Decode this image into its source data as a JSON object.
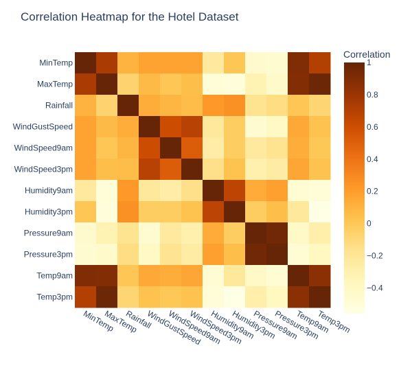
{
  "chart_data": {
    "type": "heatmap",
    "title": "Correlation Heatmap for the Hotel Dataset",
    "labels": [
      "MinTemp",
      "MaxTemp",
      "Rainfall",
      "WindGustSpeed",
      "WindSpeed9am",
      "WindSpeed3pm",
      "Humidity9am",
      "Humidity3pm",
      "Pressure9am",
      "Pressure3pm",
      "Temp9am",
      "Temp3pm"
    ],
    "matrix": [
      [
        1.0,
        0.74,
        0.1,
        0.18,
        0.18,
        0.18,
        -0.23,
        0.01,
        -0.45,
        -0.46,
        0.9,
        0.71
      ],
      [
        0.74,
        1.0,
        -0.07,
        0.07,
        0.01,
        0.05,
        -0.5,
        -0.51,
        -0.33,
        -0.43,
        0.89,
        0.98
      ],
      [
        0.1,
        -0.07,
        1.0,
        0.13,
        0.09,
        0.06,
        0.22,
        0.26,
        -0.17,
        -0.13,
        0.01,
        -0.08
      ],
      [
        0.18,
        0.07,
        0.13,
        1.0,
        0.61,
        0.69,
        -0.22,
        -0.03,
        -0.46,
        -0.41,
        0.15,
        0.03
      ],
      [
        0.18,
        0.01,
        0.09,
        0.61,
        1.0,
        0.52,
        -0.27,
        -0.03,
        -0.23,
        -0.17,
        0.13,
        0.0
      ],
      [
        0.18,
        0.05,
        0.06,
        0.69,
        0.52,
        1.0,
        -0.15,
        0.03,
        -0.3,
        -0.26,
        0.16,
        0.03
      ],
      [
        -0.23,
        -0.5,
        0.22,
        -0.22,
        -0.27,
        -0.15,
        1.0,
        0.67,
        0.14,
        0.19,
        -0.47,
        -0.5
      ],
      [
        0.01,
        -0.51,
        0.26,
        -0.03,
        -0.03,
        0.03,
        0.67,
        1.0,
        -0.03,
        0.05,
        -0.22,
        -0.56
      ],
      [
        -0.45,
        -0.33,
        -0.17,
        -0.46,
        -0.23,
        -0.3,
        0.14,
        -0.03,
        1.0,
        0.96,
        -0.42,
        -0.29
      ],
      [
        -0.46,
        -0.43,
        -0.13,
        -0.41,
        -0.17,
        -0.26,
        0.19,
        0.05,
        0.96,
        1.0,
        -0.47,
        -0.39
      ],
      [
        0.9,
        0.89,
        0.01,
        0.15,
        0.13,
        0.16,
        -0.47,
        -0.22,
        -0.42,
        -0.47,
        1.0,
        0.86
      ],
      [
        0.71,
        0.98,
        -0.08,
        0.03,
        0.0,
        0.03,
        -0.5,
        -0.56,
        -0.29,
        -0.39,
        0.86,
        1.0
      ]
    ],
    "colorbar": {
      "title": "Correlation",
      "range": [
        -0.56,
        1
      ],
      "ticks": [
        1,
        0.8,
        0.6,
        0.4,
        0.2,
        0,
        -0.2,
        -0.4
      ],
      "tick_labels": [
        "1",
        "0.8",
        "0.6",
        "0.4",
        "0.2",
        "0",
        "−0.2",
        "−0.4"
      ],
      "colorscale": [
        "#ffffe5",
        "#fff7bc",
        "#fee391",
        "#fec44f",
        "#fe9929",
        "#ec7014",
        "#cc4c02",
        "#993404",
        "#662506"
      ]
    },
    "colors": {
      "title": "#2a3f5f",
      "label": "#2a3f5f",
      "background": "#ffffff"
    }
  }
}
